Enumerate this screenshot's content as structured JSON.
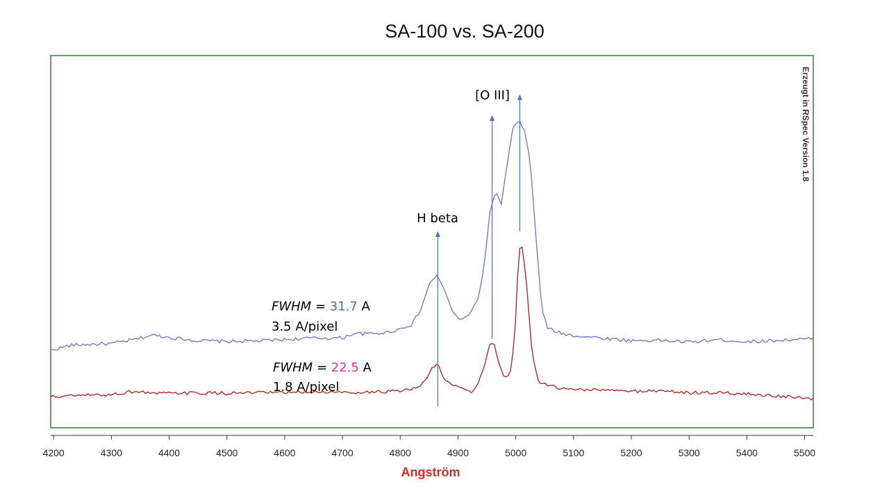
{
  "chart_data": {
    "type": "line",
    "title": "SA-100 vs. SA-200",
    "xlabel": "Angström",
    "ylabel": "",
    "xlim": [
      4195,
      5515
    ],
    "ylim": [
      0,
      100
    ],
    "x_ticks": [
      "4200",
      "4300",
      "4400",
      "4500",
      "4600",
      "4700",
      "4800",
      "4900",
      "5000",
      "5100",
      "5200",
      "5300",
      "5400",
      "5500"
    ],
    "grid": false,
    "watermark": "Erzeugt in RSpec Version 1.8",
    "colors": {
      "series1": "#7a78c8",
      "series2": "#b02a2a",
      "arrow": "#4472c4",
      "frame": "#3a7a3a",
      "xlabel": "#d42a2a",
      "fwhm1": "#4472c4",
      "fwhm2": "#e0329a"
    },
    "series": [
      {
        "points": [
          [
            4195,
            20.8
          ],
          [
            4230,
            22.2
          ],
          [
            4260,
            22.4
          ],
          [
            4300,
            22.6
          ],
          [
            4340,
            23.7
          ],
          [
            4370,
            24.9
          ],
          [
            4400,
            24.3
          ],
          [
            4450,
            23.4
          ],
          [
            4500,
            23.2
          ],
          [
            4550,
            23.3
          ],
          [
            4600,
            23.7
          ],
          [
            4650,
            24.1
          ],
          [
            4700,
            24.1
          ],
          [
            4720,
            25.4
          ],
          [
            4750,
            25.2
          ],
          [
            4780,
            25.7
          ],
          [
            4800,
            26.6
          ],
          [
            4820,
            27.8
          ],
          [
            4835,
            31.5
          ],
          [
            4850,
            38.5
          ],
          [
            4863,
            41.0
          ],
          [
            4875,
            37.7
          ],
          [
            4890,
            31.3
          ],
          [
            4905,
            28.8
          ],
          [
            4920,
            30.6
          ],
          [
            4935,
            34.8
          ],
          [
            4945,
            43.1
          ],
          [
            4955,
            57.6
          ],
          [
            4962,
            62.0
          ],
          [
            4968,
            62.8
          ],
          [
            4975,
            60.1
          ],
          [
            4985,
            70.7
          ],
          [
            4995,
            80.4
          ],
          [
            5005,
            82.5
          ],
          [
            5015,
            80.0
          ],
          [
            5025,
            71.5
          ],
          [
            5035,
            51.1
          ],
          [
            5045,
            32.0
          ],
          [
            5055,
            26.7
          ],
          [
            5080,
            25.3
          ],
          [
            5100,
            24.8
          ],
          [
            5150,
            24.1
          ],
          [
            5200,
            23.4
          ],
          [
            5250,
            23.5
          ],
          [
            5300,
            23.0
          ],
          [
            5350,
            23.7
          ],
          [
            5400,
            23.1
          ],
          [
            5450,
            23.5
          ],
          [
            5515,
            23.9
          ]
        ]
      },
      {
        "points": [
          [
            4195,
            8.3
          ],
          [
            4250,
            8.7
          ],
          [
            4300,
            8.9
          ],
          [
            4340,
            9.8
          ],
          [
            4380,
            9.2
          ],
          [
            4450,
            9.3
          ],
          [
            4500,
            9.3
          ],
          [
            4550,
            9.4
          ],
          [
            4600,
            9.4
          ],
          [
            4650,
            9.6
          ],
          [
            4700,
            9.5
          ],
          [
            4750,
            9.6
          ],
          [
            4800,
            9.8
          ],
          [
            4830,
            10.6
          ],
          [
            4845,
            13.0
          ],
          [
            4855,
            16.0
          ],
          [
            4865,
            17.2
          ],
          [
            4875,
            13.3
          ],
          [
            4890,
            11.5
          ],
          [
            4910,
            10.6
          ],
          [
            4925,
            9.4
          ],
          [
            4935,
            12.1
          ],
          [
            4945,
            16.3
          ],
          [
            4955,
            22.3
          ],
          [
            4962,
            22.8
          ],
          [
            4970,
            17.7
          ],
          [
            4980,
            13.5
          ],
          [
            4990,
            14.2
          ],
          [
            4998,
            23.9
          ],
          [
            5005,
            46.9
          ],
          [
            5010,
            49.8
          ],
          [
            5018,
            40.2
          ],
          [
            5028,
            20.1
          ],
          [
            5040,
            12.0
          ],
          [
            5060,
            11.5
          ],
          [
            5080,
            10.4
          ],
          [
            5120,
            10.3
          ],
          [
            5200,
            9.8
          ],
          [
            5250,
            10.0
          ],
          [
            5300,
            9.4
          ],
          [
            5350,
            9.4
          ],
          [
            5400,
            9.1
          ],
          [
            5450,
            8.6
          ],
          [
            5515,
            7.6
          ]
        ]
      }
    ],
    "annotations": {
      "hbeta": {
        "label": "H beta",
        "x": 4865
      },
      "oiii": {
        "label": "[O III]",
        "x_lines": [
          4959,
          5007
        ]
      },
      "fwhm_top": {
        "prefix": "FWHM",
        "eq": " = ",
        "value": "31.7",
        "unit": " A",
        "scale": "3.5 A/pixel"
      },
      "fwhm_bottom": {
        "prefix": "FWHM",
        "eq": " = ",
        "value": "22.5",
        "unit": " A",
        "scale": "1.8 A/pixel"
      }
    }
  }
}
